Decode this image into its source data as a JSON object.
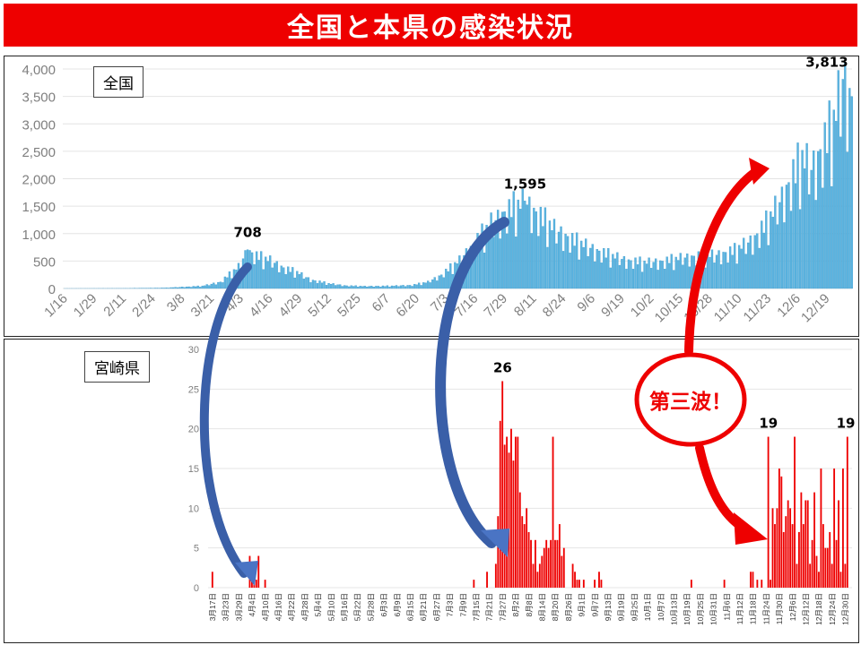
{
  "title": "全国と本県の感染状況",
  "callout": {
    "text": "第三波！",
    "color": "#ee0000"
  },
  "arrow_colors": {
    "blue": "#3a5fa8",
    "red": "#ee0000"
  },
  "chart_data": [
    {
      "type": "bar",
      "legend": "全国",
      "color": "#5bb4e0",
      "yticks": [
        "4,000",
        "3,500",
        "3,000",
        "2,500",
        "2,000",
        "1,500",
        "1,000",
        "500",
        "0"
      ],
      "ylim": [
        0,
        4000
      ],
      "xticks": [
        "1/16",
        "1/29",
        "2/11",
        "2/24",
        "3/8",
        "3/21",
        "4/3",
        "4/16",
        "4/29",
        "5/12",
        "5/25",
        "6/7",
        "6/20",
        "7/3",
        "7/16",
        "7/29",
        "8/11",
        "8/24",
        "9/6",
        "9/19",
        "10/2",
        "10/15",
        "10/28",
        "11/10",
        "11/23",
        "12/6",
        "12/19"
      ],
      "start": "1/16",
      "days": 350,
      "annotations": [
        {
          "label": "708",
          "day": 82,
          "value": 708
        },
        {
          "label": "1,595",
          "day": 205,
          "value": 1595
        },
        {
          "label": "3,813",
          "day": 346,
          "value": 3813
        }
      ],
      "keypoints": [
        [
          0,
          0
        ],
        [
          30,
          2
        ],
        [
          45,
          10
        ],
        [
          55,
          30
        ],
        [
          62,
          45
        ],
        [
          70,
          120
        ],
        [
          78,
          400
        ],
        [
          82,
          708
        ],
        [
          86,
          600
        ],
        [
          92,
          520
        ],
        [
          98,
          380
        ],
        [
          104,
          300
        ],
        [
          110,
          160
        ],
        [
          118,
          90
        ],
        [
          126,
          50
        ],
        [
          134,
          40
        ],
        [
          145,
          45
        ],
        [
          155,
          60
        ],
        [
          162,
          120
        ],
        [
          168,
          250
        ],
        [
          176,
          520
        ],
        [
          184,
          900
        ],
        [
          190,
          1200
        ],
        [
          196,
          1400
        ],
        [
          200,
          1500
        ],
        [
          205,
          1595
        ],
        [
          210,
          1400
        ],
        [
          218,
          1100
        ],
        [
          226,
          900
        ],
        [
          234,
          750
        ],
        [
          242,
          620
        ],
        [
          250,
          520
        ],
        [
          258,
          480
        ],
        [
          266,
          500
        ],
        [
          274,
          560
        ],
        [
          282,
          600
        ],
        [
          290,
          620
        ],
        [
          298,
          700
        ],
        [
          306,
          900
        ],
        [
          312,
          1200
        ],
        [
          318,
          1600
        ],
        [
          324,
          2100
        ],
        [
          328,
          2400
        ],
        [
          332,
          2200
        ],
        [
          338,
          2700
        ],
        [
          342,
          3100
        ],
        [
          346,
          3813
        ],
        [
          350,
          3500
        ]
      ],
      "noise": [
        1.0,
        0.7,
        1.12,
        0.88,
        1.18,
        0.62,
        1.05,
        0.93,
        1.15,
        0.76,
        0.98,
        1.1,
        0.68,
        1.02
      ]
    },
    {
      "type": "bar",
      "legend": "宮崎県",
      "color": "#ee0000",
      "yticks": [
        "30",
        "25",
        "20",
        "15",
        "10",
        "5",
        "0"
      ],
      "ylim": [
        0,
        30
      ],
      "xticks": [
        "3月17日",
        "3月23日",
        "3月29日",
        "4月4日",
        "4月10日",
        "4月16日",
        "4月22日",
        "4月28日",
        "5月4日",
        "5月10日",
        "5月16日",
        "5月22日",
        "5月28日",
        "6月3日",
        "6月9日",
        "6月15日",
        "6月21日",
        "6月27日",
        "7月3日",
        "7月9日",
        "7月15日",
        "7月21日",
        "7月27日",
        "8月2日",
        "8月8日",
        "8月14日",
        "8月20日",
        "8月26日",
        "9月1日",
        "9月7日",
        "9月13日",
        "9月19日",
        "9月25日",
        "10月1日",
        "10月7日",
        "10月13日",
        "10月19日",
        "10月25日",
        "10月31日",
        "11月6日",
        "11月12日",
        "11月18日",
        "11月24日",
        "11月30日",
        "12月6日",
        "12月12日",
        "12月18日",
        "12月24日",
        "12月30日"
      ],
      "start": "3月17日",
      "days": 289,
      "annotations": [
        {
          "label": "26",
          "day": 132,
          "value": 26
        },
        {
          "label": "19",
          "day": 253,
          "value": 19
        },
        {
          "label": "19",
          "day": 289,
          "value": 19
        }
      ],
      "values": [
        [
          0,
          2
        ],
        [
          17,
          4
        ],
        [
          18,
          1
        ],
        [
          19,
          2
        ],
        [
          20,
          1
        ],
        [
          21,
          4
        ],
        [
          24,
          1
        ],
        [
          119,
          1
        ],
        [
          125,
          2
        ],
        [
          129,
          3
        ],
        [
          130,
          9
        ],
        [
          131,
          21
        ],
        [
          132,
          26
        ],
        [
          133,
          18
        ],
        [
          134,
          19
        ],
        [
          135,
          17
        ],
        [
          136,
          20
        ],
        [
          137,
          16
        ],
        [
          138,
          19
        ],
        [
          139,
          19
        ],
        [
          140,
          12
        ],
        [
          141,
          9
        ],
        [
          142,
          8
        ],
        [
          143,
          10
        ],
        [
          144,
          7
        ],
        [
          145,
          6
        ],
        [
          146,
          3
        ],
        [
          147,
          6
        ],
        [
          148,
          2
        ],
        [
          149,
          3
        ],
        [
          150,
          4
        ],
        [
          151,
          5
        ],
        [
          152,
          6
        ],
        [
          153,
          5
        ],
        [
          154,
          6
        ],
        [
          155,
          19
        ],
        [
          156,
          6
        ],
        [
          157,
          6
        ],
        [
          158,
          8
        ],
        [
          159,
          4
        ],
        [
          160,
          5
        ],
        [
          164,
          3
        ],
        [
          165,
          2
        ],
        [
          166,
          1
        ],
        [
          167,
          1
        ],
        [
          169,
          1
        ],
        [
          174,
          1
        ],
        [
          176,
          2
        ],
        [
          177,
          1
        ],
        [
          218,
          1
        ],
        [
          233,
          1
        ],
        [
          245,
          2
        ],
        [
          246,
          2
        ],
        [
          248,
          1
        ],
        [
          250,
          1
        ],
        [
          253,
          19
        ],
        [
          254,
          1
        ],
        [
          255,
          10
        ],
        [
          256,
          8
        ],
        [
          257,
          10
        ],
        [
          258,
          15
        ],
        [
          259,
          14
        ],
        [
          260,
          7
        ],
        [
          261,
          9
        ],
        [
          262,
          11
        ],
        [
          263,
          10
        ],
        [
          264,
          8
        ],
        [
          265,
          19
        ],
        [
          266,
          3
        ],
        [
          267,
          7
        ],
        [
          268,
          12
        ],
        [
          269,
          8
        ],
        [
          270,
          11
        ],
        [
          271,
          11
        ],
        [
          272,
          3
        ],
        [
          273,
          6
        ],
        [
          274,
          12
        ],
        [
          275,
          4
        ],
        [
          276,
          2
        ],
        [
          277,
          15
        ],
        [
          278,
          8
        ],
        [
          279,
          5
        ],
        [
          280,
          5
        ],
        [
          281,
          7
        ],
        [
          282,
          3
        ],
        [
          283,
          15
        ],
        [
          284,
          6
        ],
        [
          285,
          11
        ],
        [
          286,
          2
        ],
        [
          287,
          15
        ],
        [
          288,
          3
        ],
        [
          289,
          19
        ]
      ]
    }
  ]
}
